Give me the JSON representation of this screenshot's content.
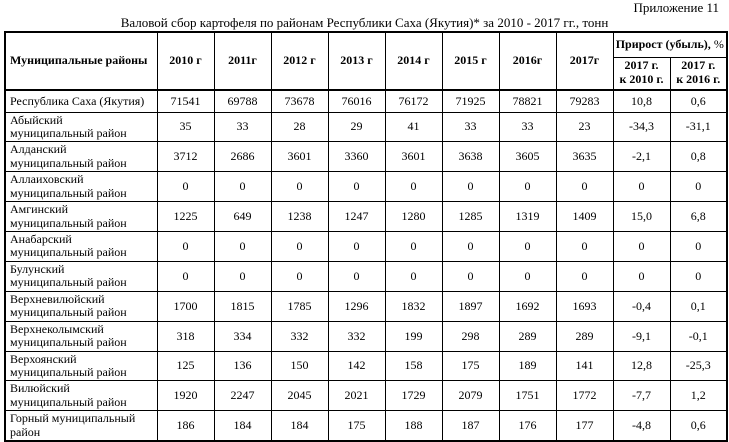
{
  "page": {
    "appendix": "Приложение 11",
    "title": "Валовой сбор картофеля по районам Республики Саха (Якутия)* за 2010 - 2017 гг., тонн"
  },
  "table": {
    "districts_header": "Муниципальные районы",
    "year_headers": [
      "2010 г",
      "2011г",
      "2012 г",
      "2013 г",
      "2014 г",
      "2015 г",
      "2016г",
      "2017г"
    ],
    "growth_header": "Прирост (убыль),",
    "growth_header_suffix": " %",
    "growth_subheaders": [
      "2017 г.\nк 2010 г.",
      "2017 г.\nк 2016 г."
    ],
    "rows": [
      {
        "district": "Республика Саха (Якутия)",
        "single_line": true,
        "values": [
          "71541",
          "69788",
          "73678",
          "76016",
          "76172",
          "71925",
          "78821",
          "79283",
          "10,8",
          "0,6"
        ]
      },
      {
        "district": "Абыйский\nмуниципальный район",
        "single_line": false,
        "values": [
          "35",
          "33",
          "28",
          "29",
          "41",
          "33",
          "33",
          "23",
          "-34,3",
          "-31,1"
        ]
      },
      {
        "district": "Алданский\nмуниципальный район",
        "single_line": false,
        "values": [
          "3712",
          "2686",
          "3601",
          "3360",
          "3601",
          "3638",
          "3605",
          "3635",
          "-2,1",
          "0,8"
        ]
      },
      {
        "district": "Аллаиховский\nмуниципальный район",
        "single_line": false,
        "values": [
          "0",
          "0",
          "0",
          "0",
          "0",
          "0",
          "0",
          "0",
          "0",
          "0"
        ]
      },
      {
        "district": "Амгинский\nмуниципальный район",
        "single_line": false,
        "values": [
          "1225",
          "649",
          "1238",
          "1247",
          "1280",
          "1285",
          "1319",
          "1409",
          "15,0",
          "6,8"
        ]
      },
      {
        "district": "Анабарский\nмуниципальный район",
        "single_line": false,
        "values": [
          "0",
          "0",
          "0",
          "0",
          "0",
          "0",
          "0",
          "0",
          "0",
          "0"
        ]
      },
      {
        "district": "Булунский\nмуниципальный район",
        "single_line": false,
        "values": [
          "0",
          "0",
          "0",
          "0",
          "0",
          "0",
          "0",
          "0",
          "0",
          "0"
        ]
      },
      {
        "district": "Верхневилюйский\nмуниципальный район",
        "single_line": false,
        "values": [
          "1700",
          "1815",
          "1785",
          "1296",
          "1832",
          "1897",
          "1692",
          "1693",
          "-0,4",
          "0,1"
        ]
      },
      {
        "district": "Верхнеколымский\nмуниципальный район",
        "single_line": false,
        "values": [
          "318",
          "334",
          "332",
          "332",
          "199",
          "298",
          "289",
          "289",
          "-9,1",
          "-0,1"
        ]
      },
      {
        "district": "Верхоянский\nмуниципальный район",
        "single_line": false,
        "values": [
          "125",
          "136",
          "150",
          "142",
          "158",
          "175",
          "189",
          "141",
          "12,8",
          "-25,3"
        ]
      },
      {
        "district": "Вилюйский\nмуниципальный район",
        "single_line": false,
        "values": [
          "1920",
          "2247",
          "2045",
          "2021",
          "1729",
          "2079",
          "1751",
          "1772",
          "-7,7",
          "1,2"
        ]
      },
      {
        "district": "Горный муниципальный\nрайон",
        "single_line": false,
        "values": [
          "186",
          "184",
          "184",
          "175",
          "188",
          "187",
          "176",
          "177",
          "-4,8",
          "0,6"
        ]
      }
    ]
  }
}
